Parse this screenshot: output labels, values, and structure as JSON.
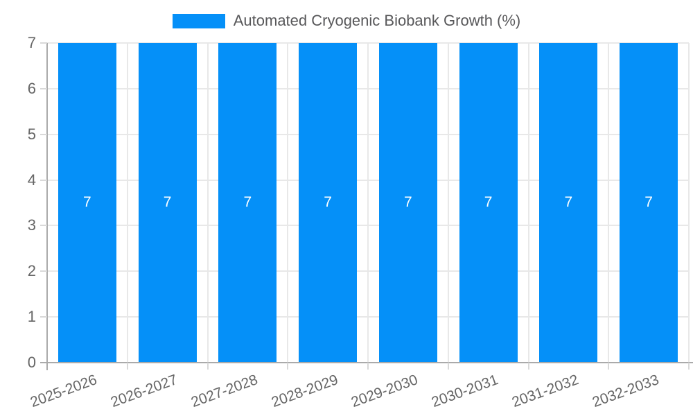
{
  "legend": {
    "series_label": "Automated Cryogenic Biobank Growth (%)"
  },
  "colors": {
    "bar": "#0590f8",
    "grid": "#e8e8e8",
    "axis": "#aaaaaa",
    "tick": "#d9d9d9",
    "tick_label": "#666666",
    "legend_text": "#58585a",
    "bar_value_label": "#ffffff",
    "background": "#ffffff"
  },
  "chart_data": {
    "type": "bar",
    "title": "Automated Cryogenic Biobank Growth (%)",
    "categories": [
      "2025-2026",
      "2026-2027",
      "2027-2028",
      "2028-2029",
      "2029-2030",
      "2030-2031",
      "2031-2032",
      "2032-2033"
    ],
    "values": [
      7,
      7,
      7,
      7,
      7,
      7,
      7,
      7
    ],
    "bar_value_labels": [
      "7",
      "7",
      "7",
      "7",
      "7",
      "7",
      "7",
      "7"
    ],
    "xlabel": "",
    "ylabel": "",
    "ylim": [
      0,
      7
    ],
    "yticks": [
      0,
      1,
      2,
      3,
      4,
      5,
      6,
      7
    ],
    "grid": true,
    "legend_position": "top",
    "x_tick_rotation_deg": -20
  }
}
